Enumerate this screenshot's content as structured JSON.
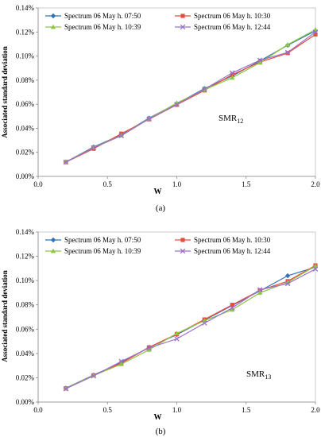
{
  "chart_data": [
    {
      "type": "line",
      "panel_label": "(a)",
      "annotation": {
        "main": "SMR",
        "sub": "12"
      },
      "xlabel": "W",
      "ylabel": "Associated standard deviation",
      "xlim": [
        0.0,
        2.0
      ],
      "ylim": [
        0.0,
        0.14
      ],
      "x_ticks": [
        "0.0",
        "0.5",
        "1.0",
        "1.5",
        "2.0"
      ],
      "y_ticks": [
        "0.00%",
        "0.02%",
        "0.04%",
        "0.06%",
        "0.08%",
        "0.10%",
        "0.12%",
        "0.14%"
      ],
      "grid": false,
      "legend_position": "top",
      "x": [
        0.2,
        0.4,
        0.6,
        0.8,
        1.0,
        1.2,
        1.4,
        1.6,
        1.8,
        2.0
      ],
      "series": [
        {
          "name": "Spectrum 06 May h. 07:50",
          "color": "#2E75B6",
          "marker": "diamond",
          "values": [
            0.012,
            0.0245,
            0.0345,
            0.0485,
            0.0605,
            0.073,
            0.0835,
            0.096,
            0.109,
            0.121
          ]
        },
        {
          "name": "Spectrum 06 May h. 10:30",
          "color": "#E84C3D",
          "marker": "square",
          "values": [
            0.0118,
            0.023,
            0.0355,
            0.0475,
            0.0595,
            0.0715,
            0.0845,
            0.095,
            0.1025,
            0.118
          ]
        },
        {
          "name": "Spectrum 06 May h. 10:39",
          "color": "#8DC63F",
          "marker": "triangle",
          "values": [
            0.012,
            0.024,
            0.034,
            0.048,
            0.061,
            0.072,
            0.082,
            0.0945,
            0.1095,
            0.122
          ]
        },
        {
          "name": "Spectrum 06 May h. 12:44",
          "color": "#9B72C9",
          "marker": "cross",
          "values": [
            0.0119,
            0.0238,
            0.0338,
            0.0478,
            0.0598,
            0.0725,
            0.086,
            0.0965,
            0.103,
            0.12
          ]
        }
      ]
    },
    {
      "type": "line",
      "panel_label": "(b)",
      "annotation": {
        "main": "SMR",
        "sub": "13"
      },
      "xlabel": "W",
      "ylabel": "Associated standard deviation",
      "xlim": [
        0.0,
        2.0
      ],
      "ylim": [
        0.0,
        0.14
      ],
      "x_ticks": [
        "0.0",
        "0.5",
        "1.0",
        "1.5",
        "2.0"
      ],
      "y_ticks": [
        "0.00%",
        "0.02%",
        "0.04%",
        "0.06%",
        "0.08%",
        "0.10%",
        "0.12%",
        "0.14%"
      ],
      "grid": false,
      "legend_position": "top",
      "x": [
        0.2,
        0.4,
        0.6,
        0.8,
        1.0,
        1.2,
        1.4,
        1.6,
        1.8,
        2.0
      ],
      "series": [
        {
          "name": "Spectrum 06 May h. 07:50",
          "color": "#2E75B6",
          "marker": "diamond",
          "values": [
            0.0115,
            0.0222,
            0.0325,
            0.045,
            0.0555,
            0.0675,
            0.0795,
            0.0915,
            0.104,
            0.111
          ]
        },
        {
          "name": "Spectrum 06 May h. 10:30",
          "color": "#E84C3D",
          "marker": "square",
          "values": [
            0.0112,
            0.022,
            0.032,
            0.045,
            0.056,
            0.068,
            0.08,
            0.092,
            0.0995,
            0.1125
          ]
        },
        {
          "name": "Spectrum 06 May h. 10:39",
          "color": "#8DC63F",
          "marker": "triangle",
          "values": [
            0.0113,
            0.0218,
            0.0312,
            0.043,
            0.0565,
            0.067,
            0.076,
            0.09,
            0.0985,
            0.112
          ]
        },
        {
          "name": "Spectrum 06 May h. 12:44",
          "color": "#9B72C9",
          "marker": "cross",
          "values": [
            0.011,
            0.0215,
            0.0335,
            0.0445,
            0.052,
            0.065,
            0.0775,
            0.0925,
            0.0975,
            0.1095
          ]
        }
      ]
    }
  ]
}
